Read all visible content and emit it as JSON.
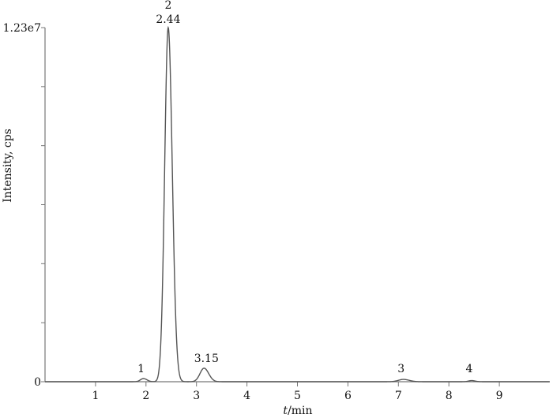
{
  "chart_data": {
    "type": "line",
    "xlabel_italic": "t",
    "xlabel_rest": "/min",
    "ylabel": "Intensity, cps",
    "xlim": [
      0,
      10
    ],
    "ylim": [
      0,
      12300000
    ],
    "x_ticks": [
      1,
      2,
      3,
      4,
      5,
      6,
      7,
      8,
      9
    ],
    "y_tick_labels": {
      "top": "1.23e7",
      "zero": "0"
    },
    "y_minor_divisions": 6,
    "grid": false,
    "line_color": "#555555",
    "axis_color": "#777777",
    "peaks": [
      {
        "label": "1",
        "rt": 1.95,
        "height": 110000,
        "sigma": 0.06
      },
      {
        "label": "2",
        "rt_label": "2.44",
        "rt": 2.44,
        "height": 12300000,
        "sigma": 0.07
      },
      {
        "label": "3.15",
        "rt": 3.15,
        "height": 470000,
        "sigma": 0.08
      },
      {
        "label": "3",
        "rt": 7.1,
        "height": 80000,
        "sigma": 0.1
      },
      {
        "label": "4",
        "rt": 8.45,
        "height": 40000,
        "sigma": 0.06
      }
    ]
  }
}
